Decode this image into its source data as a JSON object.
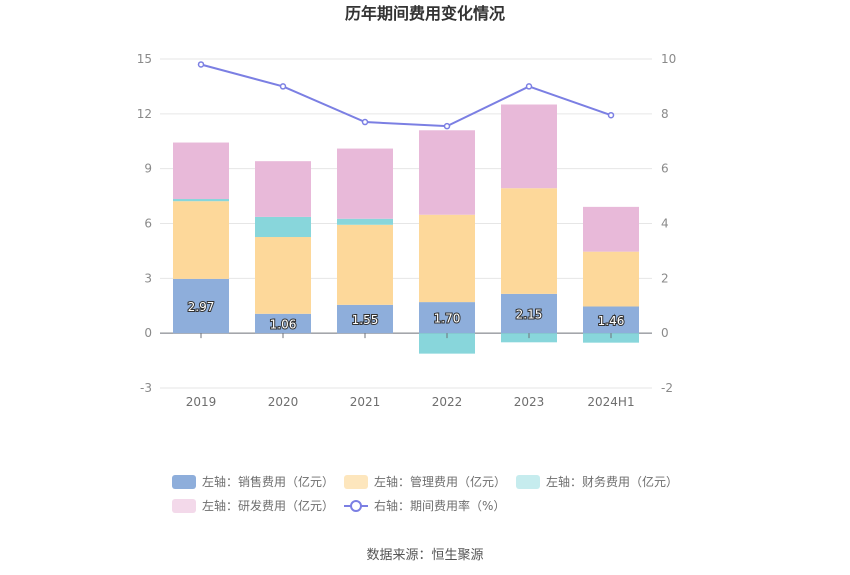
{
  "chart_data": {
    "type": "bar",
    "title": "历年期间费用变化情况",
    "categories": [
      "2019",
      "2020",
      "2021",
      "2022",
      "2023",
      "2024H1"
    ],
    "left_axis": {
      "ticks": [
        -3,
        0,
        3,
        6,
        9,
        12,
        15
      ],
      "range": [
        -3,
        15
      ]
    },
    "right_axis": {
      "ticks": [
        -2,
        0,
        2,
        4,
        6,
        8,
        10
      ],
      "range": [
        -2,
        10
      ]
    },
    "series": [
      {
        "name": "左轴：销售费用（亿元）",
        "type": "bar",
        "axis": "left",
        "color": "#8eaedb",
        "legend_color": "#8eaedb",
        "values": [
          2.97,
          1.06,
          1.55,
          1.7,
          2.15,
          1.46
        ],
        "labels": [
          "2.97",
          "1.06",
          "1.55",
          "1.70",
          "2.15",
          "1.46"
        ]
      },
      {
        "name": "左轴：管理费用（亿元）",
        "type": "bar",
        "axis": "left",
        "color": "#fdd89a",
        "legend_color": "#fde6bd",
        "values": [
          4.25,
          4.2,
          4.38,
          4.78,
          5.78,
          3.0
        ]
      },
      {
        "name": "左轴：财务费用（亿元）",
        "type": "bar",
        "axis": "left",
        "color": "#88d6db",
        "legend_color": "#c6ecee",
        "values": [
          0.12,
          1.1,
          0.33,
          -1.12,
          -0.5,
          -0.52
        ]
      },
      {
        "name": "左轴：研发费用（亿元）",
        "type": "bar",
        "axis": "left",
        "color": "#e8b9d9",
        "legend_color": "#f3d9ea",
        "values": [
          3.09,
          3.05,
          3.84,
          4.62,
          4.58,
          2.45
        ]
      },
      {
        "name": "右轴：期间费用率（%）",
        "type": "line",
        "axis": "right",
        "color": "#7b7fe3",
        "values": [
          9.8,
          9.0,
          7.7,
          7.55,
          9.0,
          7.95
        ]
      }
    ],
    "grid": true,
    "legend_position": "bottom",
    "source": "数据来源：恒生聚源"
  }
}
